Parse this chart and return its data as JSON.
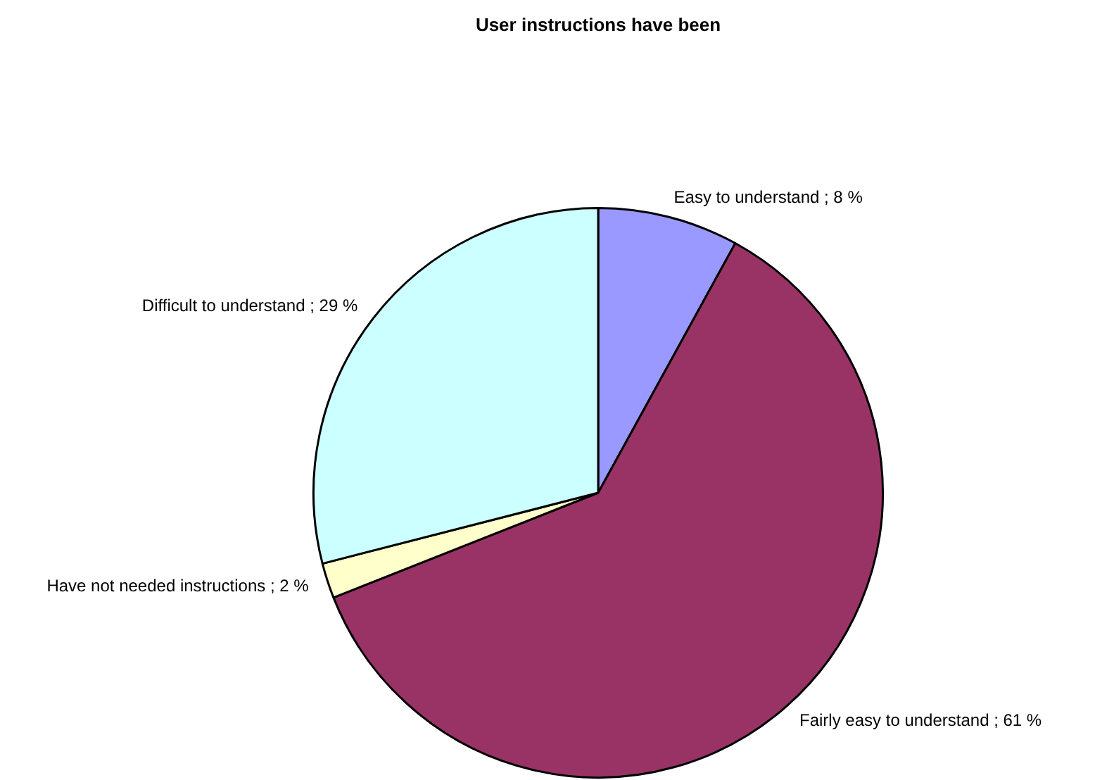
{
  "chart_data": {
    "type": "pie",
    "title": "User instructions have been",
    "categories": [
      "Easy to understand",
      "Fairly easy to understand",
      "Have not needed instructions",
      "Difficult to understand"
    ],
    "values": [
      8,
      61,
      2,
      29
    ],
    "colors": [
      "#9999ff",
      "#993366",
      "#ffffcc",
      "#ccffff"
    ],
    "value_labels": [
      "8 %",
      "61 %",
      "2 %",
      "29 %"
    ],
    "legend": false
  }
}
